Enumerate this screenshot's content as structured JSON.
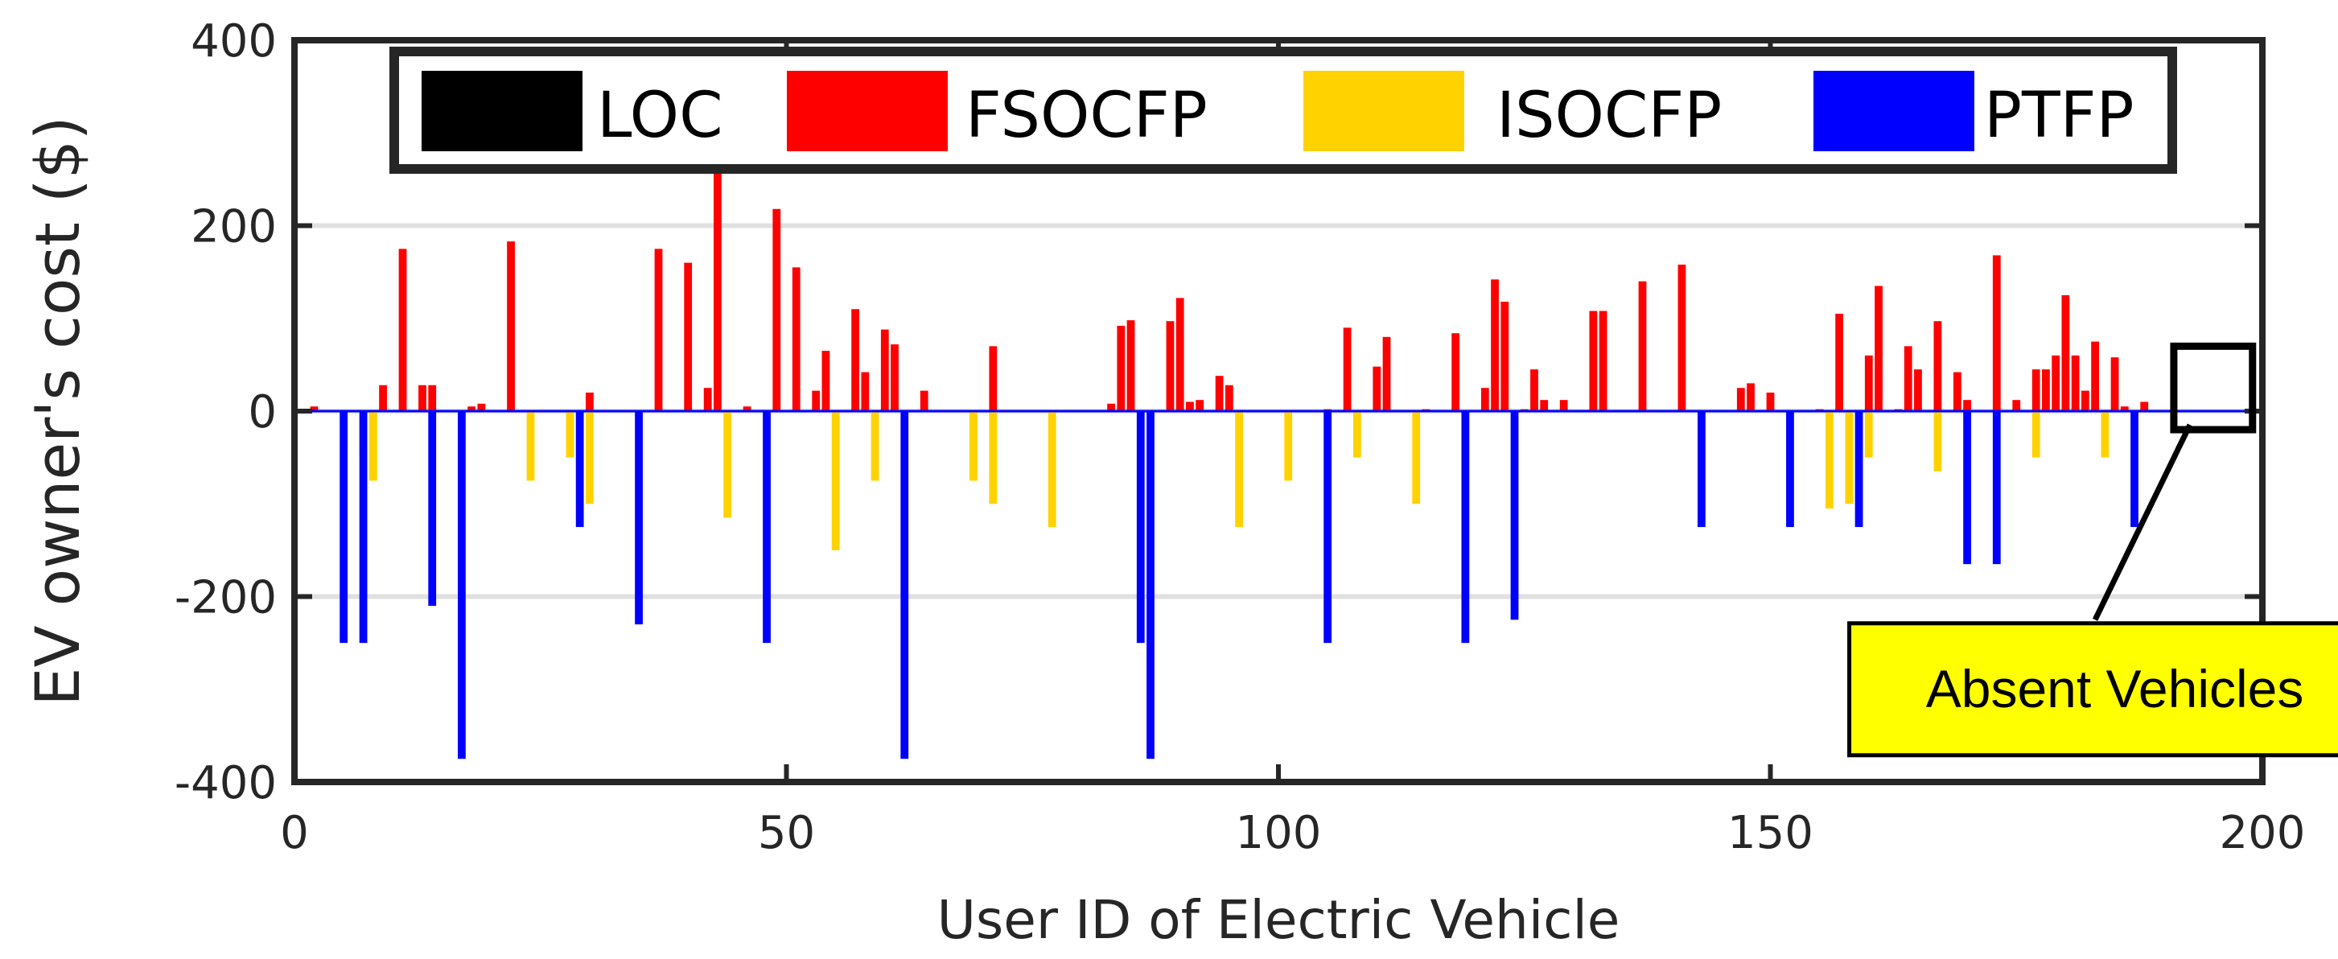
{
  "chart_data": {
    "type": "bar",
    "title": "",
    "xlabel": "User ID of Electric Vehicle",
    "ylabel": "EV owner's cost ($)",
    "xlim": [
      0,
      200
    ],
    "ylim": [
      -400,
      400
    ],
    "xticks": [
      0,
      50,
      100,
      150,
      200
    ],
    "yticks": [
      -400,
      -200,
      0,
      200,
      400
    ],
    "grid": "horizontal",
    "legend_position": "top",
    "annotation": {
      "text": "Absent Vehicles",
      "box_x": [
        191,
        199
      ],
      "box_y": [
        -20,
        70
      ],
      "label_x": 185,
      "label_y": -300,
      "arrow_x": 183,
      "arrow_y": -225,
      "background": "#ffff00"
    },
    "series": [
      {
        "name": "LOC",
        "color": "#000000",
        "points": []
      },
      {
        "name": "FSOCFP",
        "color": "#ff0000",
        "points": [
          [
            2,
            5
          ],
          [
            9,
            28
          ],
          [
            11,
            175
          ],
          [
            13,
            28
          ],
          [
            14,
            28
          ],
          [
            18,
            5
          ],
          [
            19,
            8
          ],
          [
            22,
            183
          ],
          [
            30,
            20
          ],
          [
            37,
            175
          ],
          [
            40,
            160
          ],
          [
            42,
            25
          ],
          [
            43,
            265
          ],
          [
            46,
            5
          ],
          [
            49,
            218
          ],
          [
            51,
            155
          ],
          [
            53,
            22
          ],
          [
            54,
            65
          ],
          [
            57,
            110
          ],
          [
            58,
            42
          ],
          [
            60,
            88
          ],
          [
            61,
            72
          ],
          [
            64,
            22
          ],
          [
            71,
            70
          ],
          [
            83,
            8
          ],
          [
            84,
            92
          ],
          [
            85,
            98
          ],
          [
            89,
            97
          ],
          [
            90,
            122
          ],
          [
            91,
            10
          ],
          [
            92,
            12
          ],
          [
            94,
            38
          ],
          [
            95,
            28
          ],
          [
            105,
            2
          ],
          [
            107,
            90
          ],
          [
            110,
            48
          ],
          [
            111,
            80
          ],
          [
            115,
            2
          ],
          [
            118,
            84
          ],
          [
            121,
            25
          ],
          [
            122,
            142
          ],
          [
            123,
            118
          ],
          [
            125,
            2
          ],
          [
            126,
            45
          ],
          [
            127,
            12
          ],
          [
            129,
            12
          ],
          [
            132,
            108
          ],
          [
            133,
            108
          ],
          [
            137,
            140
          ],
          [
            141,
            158
          ],
          [
            147,
            25
          ],
          [
            148,
            30
          ],
          [
            150,
            20
          ],
          [
            155,
            2
          ],
          [
            157,
            105
          ],
          [
            160,
            60
          ],
          [
            161,
            135
          ],
          [
            163,
            2
          ],
          [
            164,
            70
          ],
          [
            165,
            45
          ],
          [
            167,
            97
          ],
          [
            169,
            42
          ],
          [
            170,
            12
          ],
          [
            173,
            168
          ],
          [
            175,
            12
          ],
          [
            177,
            45
          ],
          [
            178,
            45
          ],
          [
            179,
            60
          ],
          [
            180,
            125
          ],
          [
            181,
            60
          ],
          [
            182,
            22
          ],
          [
            183,
            75
          ],
          [
            185,
            58
          ],
          [
            186,
            5
          ],
          [
            188,
            10
          ]
        ]
      },
      {
        "name": "ISOCFP",
        "color": "#ffd200",
        "points": [
          [
            7,
            -50
          ],
          [
            8,
            -75
          ],
          [
            24,
            -75
          ],
          [
            28,
            -50
          ],
          [
            30,
            -100
          ],
          [
            44,
            -115
          ],
          [
            55,
            -150
          ],
          [
            59,
            -75
          ],
          [
            69,
            -75
          ],
          [
            71,
            -100
          ],
          [
            77,
            -125
          ],
          [
            96,
            -125
          ],
          [
            101,
            -75
          ],
          [
            108,
            -50
          ],
          [
            114,
            -100
          ],
          [
            143,
            -75
          ],
          [
            156,
            -105
          ],
          [
            158,
            -100
          ],
          [
            160,
            -50
          ],
          [
            167,
            -65
          ],
          [
            177,
            -50
          ],
          [
            184,
            -50
          ]
        ]
      },
      {
        "name": "PTFP",
        "color": "#0000ff",
        "points": [
          [
            5,
            -250
          ],
          [
            7,
            -250
          ],
          [
            14,
            -210
          ],
          [
            17,
            -375
          ],
          [
            29,
            -125
          ],
          [
            35,
            -230
          ],
          [
            48,
            -250
          ],
          [
            62,
            -375
          ],
          [
            86,
            -250
          ],
          [
            87,
            -375
          ],
          [
            105,
            -250
          ],
          [
            119,
            -250
          ],
          [
            124,
            -225
          ],
          [
            143,
            -125
          ],
          [
            152,
            -125
          ],
          [
            159,
            -125
          ],
          [
            170,
            -165
          ],
          [
            173,
            -165
          ],
          [
            187,
            -125
          ]
        ]
      }
    ]
  }
}
